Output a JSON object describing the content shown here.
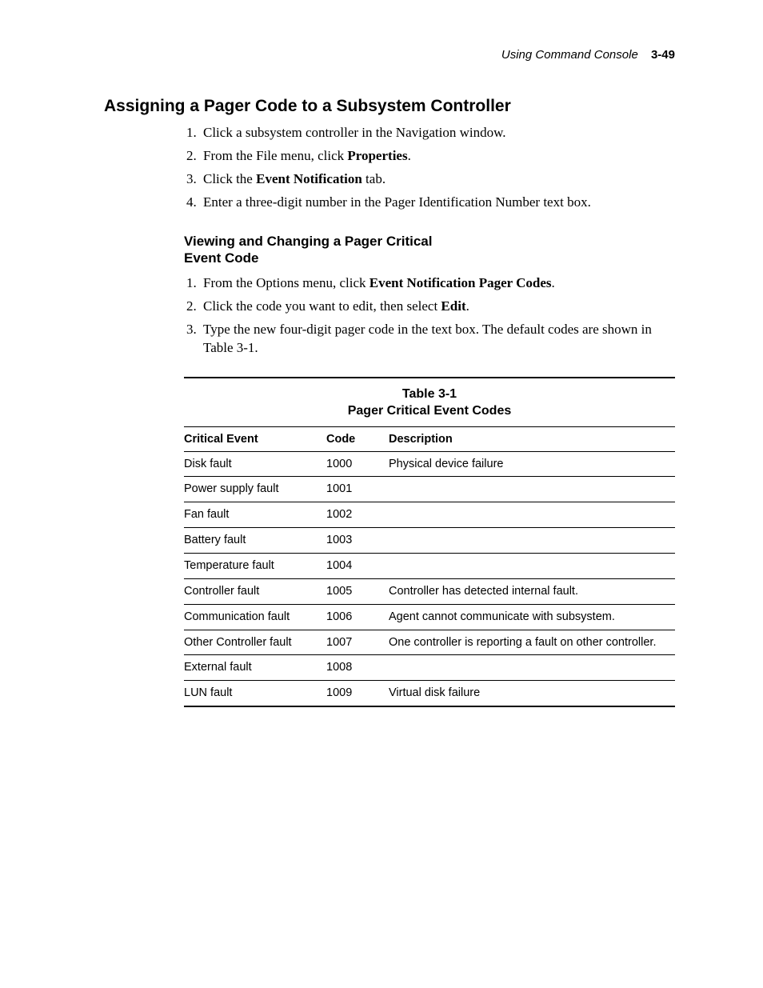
{
  "header": {
    "running_title": "Using Command Console",
    "page_number": "3-49"
  },
  "section": {
    "title": "Assigning a Pager Code to a Subsystem Controller",
    "steps": [
      {
        "pre": "Click a subsystem controller in the Navigation window.",
        "bold": "",
        "post": ""
      },
      {
        "pre": "From the File menu, click ",
        "bold": "Properties",
        "post": "."
      },
      {
        "pre": "Click the ",
        "bold": "Event Notification",
        "post": " tab."
      },
      {
        "pre": "Enter a three-digit number in the Pager Identification Number text box.",
        "bold": "",
        "post": ""
      }
    ]
  },
  "subsection": {
    "title": "Viewing and Changing a Pager Critical Event Code",
    "steps": [
      {
        "pre": "From the Options menu, click ",
        "bold": "Event Notification Pager Codes",
        "post": "."
      },
      {
        "pre": "Click the code you want to edit, then select ",
        "bold": "Edit",
        "post": "."
      },
      {
        "pre": "Type the new four-digit pager code in the text box. The default codes are shown in Table 3-1.",
        "bold": "",
        "post": ""
      }
    ]
  },
  "table": {
    "number": "Table 3-1",
    "caption": "Pager Critical Event Codes",
    "columns": [
      "Critical Event",
      "Code",
      "Description"
    ],
    "rows": [
      {
        "event": "Disk fault",
        "code": "1000",
        "desc": "Physical device failure"
      },
      {
        "event": "Power supply fault",
        "code": "1001",
        "desc": ""
      },
      {
        "event": "Fan fault",
        "code": "1002",
        "desc": ""
      },
      {
        "event": "Battery fault",
        "code": "1003",
        "desc": ""
      },
      {
        "event": "Temperature fault",
        "code": "1004",
        "desc": ""
      },
      {
        "event": "Controller fault",
        "code": "1005",
        "desc": "Controller has detected internal fault."
      },
      {
        "event": "Communication fault",
        "code": "1006",
        "desc": "Agent cannot communicate with subsystem."
      },
      {
        "event": "Other Controller fault",
        "code": "1007",
        "desc": "One controller is reporting a fault on other controller."
      },
      {
        "event": "External fault",
        "code": "1008",
        "desc": ""
      },
      {
        "event": "LUN fault",
        "code": "1009",
        "desc": "Virtual disk failure"
      }
    ]
  }
}
